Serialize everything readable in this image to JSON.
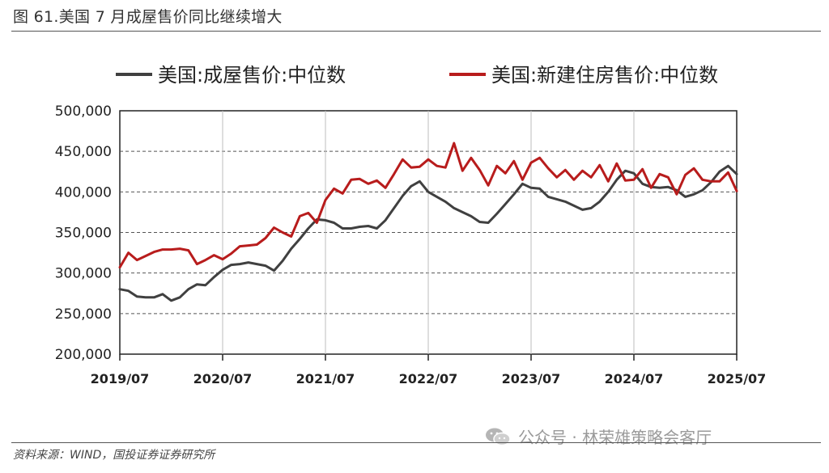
{
  "header": {
    "title": "图 61.美国 7 月成屋售价同比继续增大"
  },
  "footer": {
    "source": "资料来源：WIND，国投证券证券研究所"
  },
  "watermark": {
    "icon": "wechat-icon",
    "text": "公众号 · 林荣雄策略会客厅"
  },
  "chart_data": {
    "type": "line",
    "title": "",
    "xlabel": "",
    "ylabel": "",
    "ylim": [
      200000,
      500000
    ],
    "yticks": [
      200000,
      250000,
      300000,
      350000,
      400000,
      450000,
      500000
    ],
    "ytick_labels": [
      "200,000",
      "250,000",
      "300,000",
      "350,000",
      "400,000",
      "450,000",
      "500,000"
    ],
    "x_start": "2019/07",
    "x_end": "2025/07",
    "xticks": [
      "2019/07",
      "2020/07",
      "2021/07",
      "2022/07",
      "2023/07",
      "2024/07",
      "2025/07"
    ],
    "grid": "horizontal-dashed",
    "legend_position": "top",
    "series": [
      {
        "name": "美国:成屋售价:中位数",
        "color": "#404040",
        "points": [
          [
            "2019/07",
            280000
          ],
          [
            "2019/08",
            278000
          ],
          [
            "2019/09",
            271000
          ],
          [
            "2019/10",
            270000
          ],
          [
            "2019/11",
            270000
          ],
          [
            "2019/12",
            274000
          ],
          [
            "2020/01",
            266000
          ],
          [
            "2020/02",
            270000
          ],
          [
            "2020/03",
            280000
          ],
          [
            "2020/04",
            286000
          ],
          [
            "2020/05",
            285000
          ],
          [
            "2020/06",
            295000
          ],
          [
            "2020/07",
            304000
          ],
          [
            "2020/08",
            310000
          ],
          [
            "2020/09",
            311000
          ],
          [
            "2020/10",
            313000
          ],
          [
            "2020/11",
            311000
          ],
          [
            "2020/12",
            309000
          ],
          [
            "2021/01",
            303000
          ],
          [
            "2021/02",
            315000
          ],
          [
            "2021/03",
            330000
          ],
          [
            "2021/04",
            342000
          ],
          [
            "2021/05",
            355000
          ],
          [
            "2021/06",
            366000
          ],
          [
            "2021/07",
            365000
          ],
          [
            "2021/08",
            362000
          ],
          [
            "2021/09",
            355000
          ],
          [
            "2021/10",
            355000
          ],
          [
            "2021/11",
            357000
          ],
          [
            "2021/12",
            358000
          ],
          [
            "2022/01",
            355000
          ],
          [
            "2022/02",
            365000
          ],
          [
            "2022/03",
            380000
          ],
          [
            "2022/04",
            395000
          ],
          [
            "2022/05",
            407000
          ],
          [
            "2022/06",
            413000
          ],
          [
            "2022/07",
            400000
          ],
          [
            "2022/08",
            394000
          ],
          [
            "2022/09",
            388000
          ],
          [
            "2022/10",
            380000
          ],
          [
            "2022/11",
            375000
          ],
          [
            "2022/12",
            370000
          ],
          [
            "2023/01",
            363000
          ],
          [
            "2023/02",
            362000
          ],
          [
            "2023/03",
            373000
          ],
          [
            "2023/04",
            385000
          ],
          [
            "2023/05",
            397000
          ],
          [
            "2023/06",
            410000
          ],
          [
            "2023/07",
            405000
          ],
          [
            "2023/08",
            404000
          ],
          [
            "2023/09",
            394000
          ],
          [
            "2023/10",
            391000
          ],
          [
            "2023/11",
            388000
          ],
          [
            "2023/12",
            383000
          ],
          [
            "2024/01",
            378000
          ],
          [
            "2024/02",
            380000
          ],
          [
            "2024/03",
            388000
          ],
          [
            "2024/04",
            400000
          ],
          [
            "2024/05",
            415000
          ],
          [
            "2024/06",
            426000
          ],
          [
            "2024/07",
            423000
          ],
          [
            "2024/08",
            410000
          ],
          [
            "2024/09",
            406000
          ],
          [
            "2024/10",
            405000
          ],
          [
            "2024/11",
            406000
          ],
          [
            "2024/12",
            402000
          ],
          [
            "2025/01",
            394000
          ],
          [
            "2025/02",
            397000
          ],
          [
            "2025/03",
            402000
          ],
          [
            "2025/04",
            412000
          ],
          [
            "2025/05",
            425000
          ],
          [
            "2025/06",
            432000
          ],
          [
            "2025/07",
            422000
          ]
        ]
      },
      {
        "name": "美国:新建住房售价:中位数",
        "color": "#b81c1c",
        "points": [
          [
            "2019/07",
            307000
          ],
          [
            "2019/08",
            325000
          ],
          [
            "2019/09",
            316000
          ],
          [
            "2019/10",
            321000
          ],
          [
            "2019/11",
            326000
          ],
          [
            "2019/12",
            329000
          ],
          [
            "2020/01",
            329000
          ],
          [
            "2020/02",
            330000
          ],
          [
            "2020/03",
            328000
          ],
          [
            "2020/04",
            311000
          ],
          [
            "2020/05",
            316000
          ],
          [
            "2020/06",
            322000
          ],
          [
            "2020/07",
            317000
          ],
          [
            "2020/08",
            324000
          ],
          [
            "2020/09",
            333000
          ],
          [
            "2020/10",
            334000
          ],
          [
            "2020/11",
            335000
          ],
          [
            "2020/12",
            343000
          ],
          [
            "2021/01",
            356000
          ],
          [
            "2021/02",
            350000
          ],
          [
            "2021/03",
            345000
          ],
          [
            "2021/04",
            370000
          ],
          [
            "2021/05",
            374000
          ],
          [
            "2021/06",
            362000
          ],
          [
            "2021/07",
            390000
          ],
          [
            "2021/08",
            404000
          ],
          [
            "2021/09",
            398000
          ],
          [
            "2021/10",
            415000
          ],
          [
            "2021/11",
            416000
          ],
          [
            "2021/12",
            410000
          ],
          [
            "2022/01",
            414000
          ],
          [
            "2022/02",
            405000
          ],
          [
            "2022/03",
            422000
          ],
          [
            "2022/04",
            440000
          ],
          [
            "2022/05",
            430000
          ],
          [
            "2022/06",
            431000
          ],
          [
            "2022/07",
            440000
          ],
          [
            "2022/08",
            432000
          ],
          [
            "2022/09",
            430000
          ],
          [
            "2022/10",
            460000
          ],
          [
            "2022/11",
            426000
          ],
          [
            "2022/12",
            442000
          ],
          [
            "2023/01",
            427000
          ],
          [
            "2023/02",
            408000
          ],
          [
            "2023/03",
            432000
          ],
          [
            "2023/04",
            423000
          ],
          [
            "2023/05",
            438000
          ],
          [
            "2023/06",
            415000
          ],
          [
            "2023/07",
            436000
          ],
          [
            "2023/08",
            442000
          ],
          [
            "2023/09",
            429000
          ],
          [
            "2023/10",
            418000
          ],
          [
            "2023/11",
            427000
          ],
          [
            "2023/12",
            415000
          ],
          [
            "2024/01",
            426000
          ],
          [
            "2024/02",
            418000
          ],
          [
            "2024/03",
            433000
          ],
          [
            "2024/04",
            413000
          ],
          [
            "2024/05",
            435000
          ],
          [
            "2024/06",
            414000
          ],
          [
            "2024/07",
            415000
          ],
          [
            "2024/08",
            428000
          ],
          [
            "2024/09",
            405000
          ],
          [
            "2024/10",
            422000
          ],
          [
            "2024/11",
            418000
          ],
          [
            "2024/12",
            397000
          ],
          [
            "2025/01",
            421000
          ],
          [
            "2025/02",
            429000
          ],
          [
            "2025/03",
            415000
          ],
          [
            "2025/04",
            413000
          ],
          [
            "2025/05",
            413000
          ],
          [
            "2025/06",
            424000
          ],
          [
            "2025/07",
            401000
          ]
        ]
      }
    ]
  }
}
